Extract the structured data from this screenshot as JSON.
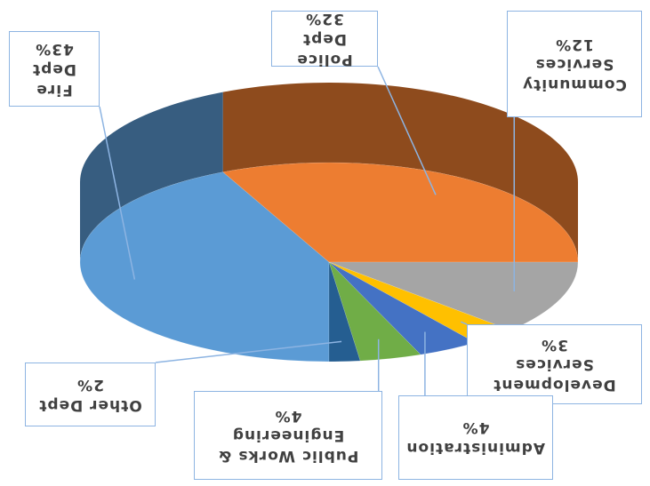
{
  "chart_data": {
    "type": "pie",
    "categories": [
      "Fire Dept",
      "Police Dept",
      "Community Services",
      "Development Services",
      "Administration",
      "Public Works & Engineering",
      "Other Dept"
    ],
    "values": [
      43,
      32,
      12,
      3,
      4,
      4,
      2
    ],
    "value_labels": [
      "43%",
      "32%",
      "12%",
      "3%",
      "4%",
      "4%",
      "2%"
    ],
    "colors": [
      "#5b9bd5",
      "#ed7d31",
      "#a5a5a5",
      "#ffc000",
      "#4472c4",
      "#70ad47",
      "#255e91"
    ]
  }
}
